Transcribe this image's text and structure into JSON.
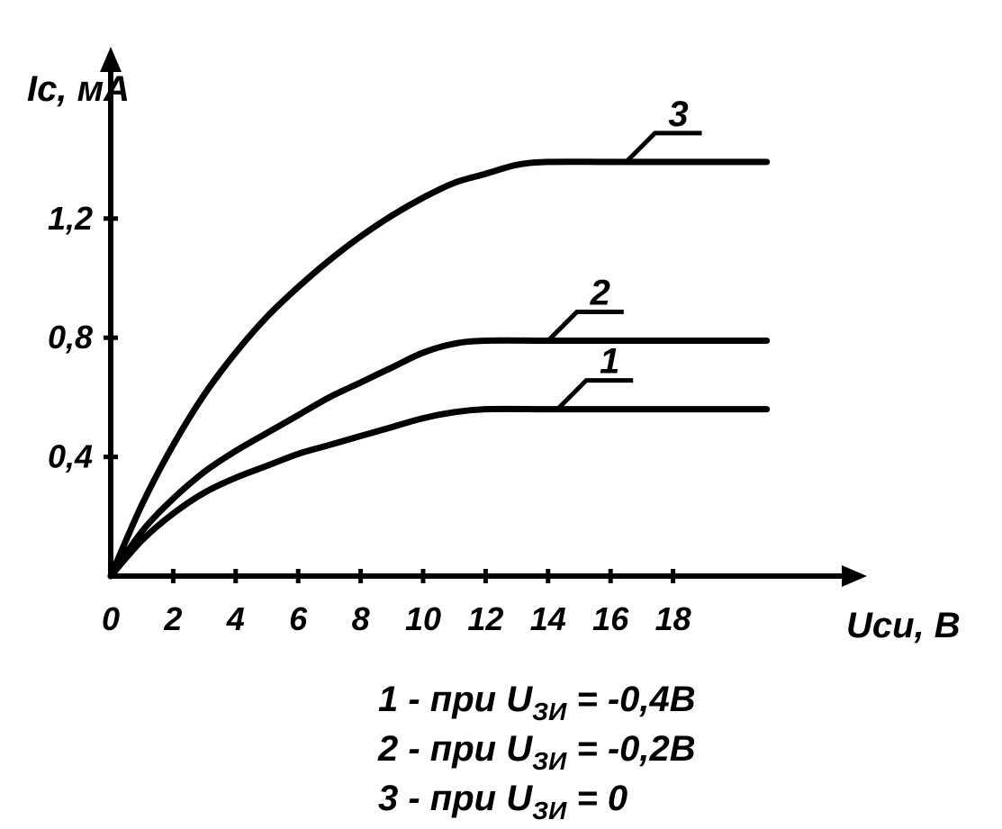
{
  "chart_data": {
    "type": "line",
    "ylabel": "Iс, мА",
    "xlabel": "Uси, В",
    "xlim": [
      0,
      21
    ],
    "ylim": [
      0,
      1.5
    ],
    "x_ticks": [
      0,
      2,
      4,
      6,
      8,
      10,
      12,
      14,
      16,
      18
    ],
    "x_tick_labels": [
      "0",
      "2",
      "4",
      "6",
      "8",
      "10",
      "12",
      "14",
      "16",
      "18"
    ],
    "y_ticks": [
      0.4,
      0.8,
      1.2
    ],
    "y_tick_labels": [
      "0,4",
      "0,8",
      "1,2"
    ],
    "grid": false,
    "series": [
      {
        "name": "1",
        "x": [
          0,
          1,
          2,
          3,
          4,
          5,
          6,
          7,
          8,
          9,
          10,
          11,
          12,
          14,
          16,
          18,
          21
        ],
        "values": [
          0,
          0.12,
          0.21,
          0.28,
          0.33,
          0.37,
          0.41,
          0.44,
          0.47,
          0.5,
          0.53,
          0.55,
          0.56,
          0.56,
          0.56,
          0.56,
          0.56
        ]
      },
      {
        "name": "2",
        "x": [
          0,
          1,
          2,
          3,
          4,
          5,
          6,
          7,
          8,
          9,
          10,
          11,
          12,
          14,
          16,
          18,
          21
        ],
        "values": [
          0,
          0.15,
          0.26,
          0.35,
          0.42,
          0.48,
          0.54,
          0.6,
          0.65,
          0.7,
          0.75,
          0.78,
          0.79,
          0.79,
          0.79,
          0.79,
          0.79
        ]
      },
      {
        "name": "3",
        "x": [
          0,
          1,
          2,
          3,
          4,
          5,
          6,
          7,
          8,
          9,
          10,
          11,
          12,
          13,
          14,
          16,
          18,
          21
        ],
        "values": [
          0,
          0.24,
          0.44,
          0.61,
          0.75,
          0.87,
          0.97,
          1.06,
          1.14,
          1.21,
          1.27,
          1.32,
          1.35,
          1.38,
          1.39,
          1.39,
          1.39,
          1.39
        ]
      }
    ],
    "legend": [
      {
        "num": "1",
        "dash": "-",
        "pri": "при",
        "u": "U",
        "sub": "ЗИ",
        "eq": "=",
        "val": "-0,4В"
      },
      {
        "num": "2",
        "dash": "-",
        "pri": "при",
        "u": "U",
        "sub": "ЗИ",
        "eq": "=",
        "val": "-0,2В"
      },
      {
        "num": "3",
        "dash": "-",
        "pri": "при",
        "u": "U",
        "sub": "ЗИ",
        "eq": "=",
        "val": "0"
      }
    ]
  }
}
